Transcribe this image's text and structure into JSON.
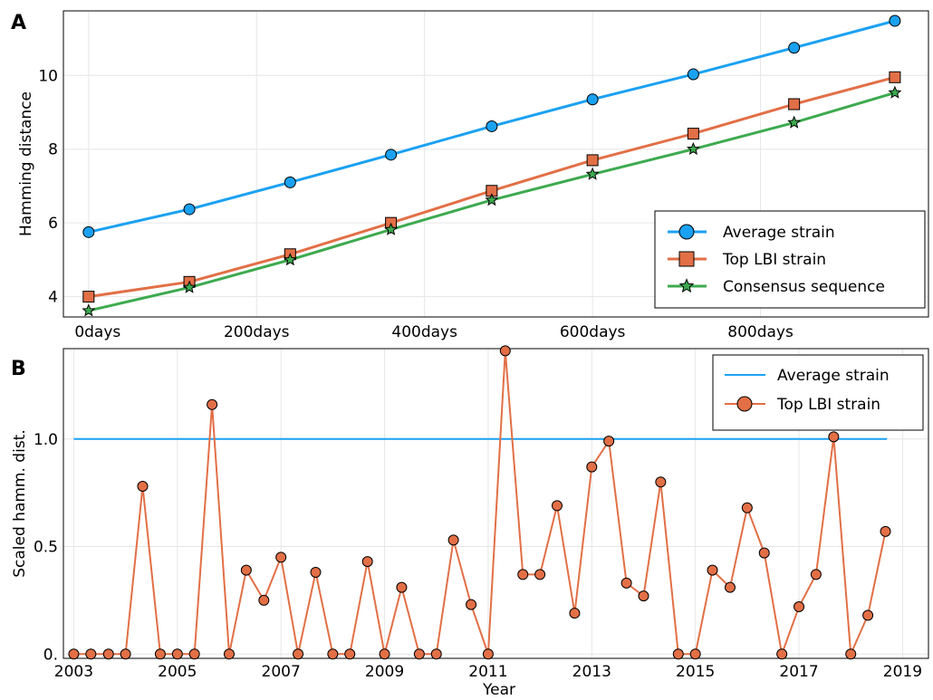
{
  "colors": {
    "average": "#1ba1f2",
    "top_lbi": "#e26f46",
    "consensus": "#3daa4f"
  },
  "panels": {
    "a": {
      "letter": "A"
    },
    "b": {
      "letter": "B"
    }
  },
  "chart_data": [
    {
      "type": "line",
      "ylabel": "Hamming distance",
      "xlabel": "",
      "x_tick_labels": [
        "0days",
        "200days",
        "400days",
        "600days",
        "800days"
      ],
      "x_ticks": [
        0,
        200,
        400,
        600,
        800
      ],
      "y_ticks": [
        4,
        6,
        8,
        10
      ],
      "y_tick_labels": [
        "4",
        "6",
        "8",
        "10"
      ],
      "xlim": [
        -30,
        1000
      ],
      "ylim": [
        3.45,
        11.75
      ],
      "grid": true,
      "legend_placement": "bottom-right",
      "x": [
        0,
        120,
        240,
        360,
        480,
        600,
        720,
        840,
        960
      ],
      "series": [
        {
          "name": "Average strain",
          "marker": "circle",
          "color": "#1ba1f2",
          "values": [
            5.75,
            6.37,
            7.1,
            7.85,
            8.62,
            9.35,
            10.03,
            10.75,
            11.48
          ]
        },
        {
          "name": "Top LBI strain",
          "marker": "square",
          "color": "#e26f46",
          "values": [
            4.0,
            4.4,
            5.15,
            6.0,
            6.87,
            7.7,
            8.42,
            9.22,
            9.95
          ]
        },
        {
          "name": "Consensus sequence",
          "marker": "star",
          "color": "#3daa4f",
          "values": [
            3.62,
            4.25,
            5.0,
            5.82,
            6.62,
            7.32,
            8.0,
            8.72,
            9.53
          ]
        }
      ]
    },
    {
      "type": "line",
      "xlabel": "Year",
      "ylabel": "Scaled hamm. dist.",
      "x_ticks": [
        2003,
        2005,
        2007,
        2009,
        2011,
        2013,
        2015,
        2017,
        2019
      ],
      "x_tick_labels": [
        "2003",
        "2005",
        "2007",
        "2009",
        "2011",
        "2013",
        "2015",
        "2017",
        "2019"
      ],
      "y_ticks": [
        0,
        0.5,
        1.0
      ],
      "y_tick_labels": [
        "0.",
        "0.5",
        "1.0"
      ],
      "xlim": [
        2002.8,
        2019.5
      ],
      "ylim": [
        -0.02,
        1.42
      ],
      "grid": true,
      "legend_placement": "top-right",
      "series": [
        {
          "name": "Average strain",
          "marker": "none",
          "color": "#1ba1f2",
          "x": [
            2003.0,
            2018.7
          ],
          "values": [
            1.0,
            1.0
          ]
        },
        {
          "name": "Top LBI strain",
          "marker": "circle",
          "color": "#e26f46",
          "x": [
            2003.0,
            2003.33,
            2003.67,
            2004.0,
            2004.33,
            2004.67,
            2005.0,
            2005.33,
            2005.67,
            2006.0,
            2006.33,
            2006.67,
            2007.0,
            2007.33,
            2007.67,
            2008.0,
            2008.33,
            2008.67,
            2009.0,
            2009.33,
            2009.67,
            2010.0,
            2010.33,
            2010.67,
            2011.0,
            2011.33,
            2011.67,
            2012.0,
            2012.33,
            2012.67,
            2013.0,
            2013.33,
            2013.67,
            2014.0,
            2014.33,
            2014.67,
            2015.0,
            2015.33,
            2015.67,
            2016.0,
            2016.33,
            2016.67,
            2017.0,
            2017.33,
            2017.67,
            2018.0,
            2018.33,
            2018.67
          ],
          "values": [
            0,
            0,
            0,
            0,
            0.78,
            0,
            0,
            0,
            1.16,
            0,
            0.39,
            0.25,
            0.45,
            0,
            0.38,
            0,
            0,
            0.43,
            0,
            0.31,
            0,
            0,
            0.53,
            0.23,
            0,
            1.41,
            0.37,
            0.37,
            0.69,
            0.19,
            0.87,
            0.99,
            0.33,
            0.27,
            0.8,
            0,
            0,
            0.39,
            0.31,
            0.68,
            0.47,
            0,
            0.22,
            0.37,
            1.01,
            0,
            0.18,
            0.57
          ]
        }
      ]
    }
  ]
}
